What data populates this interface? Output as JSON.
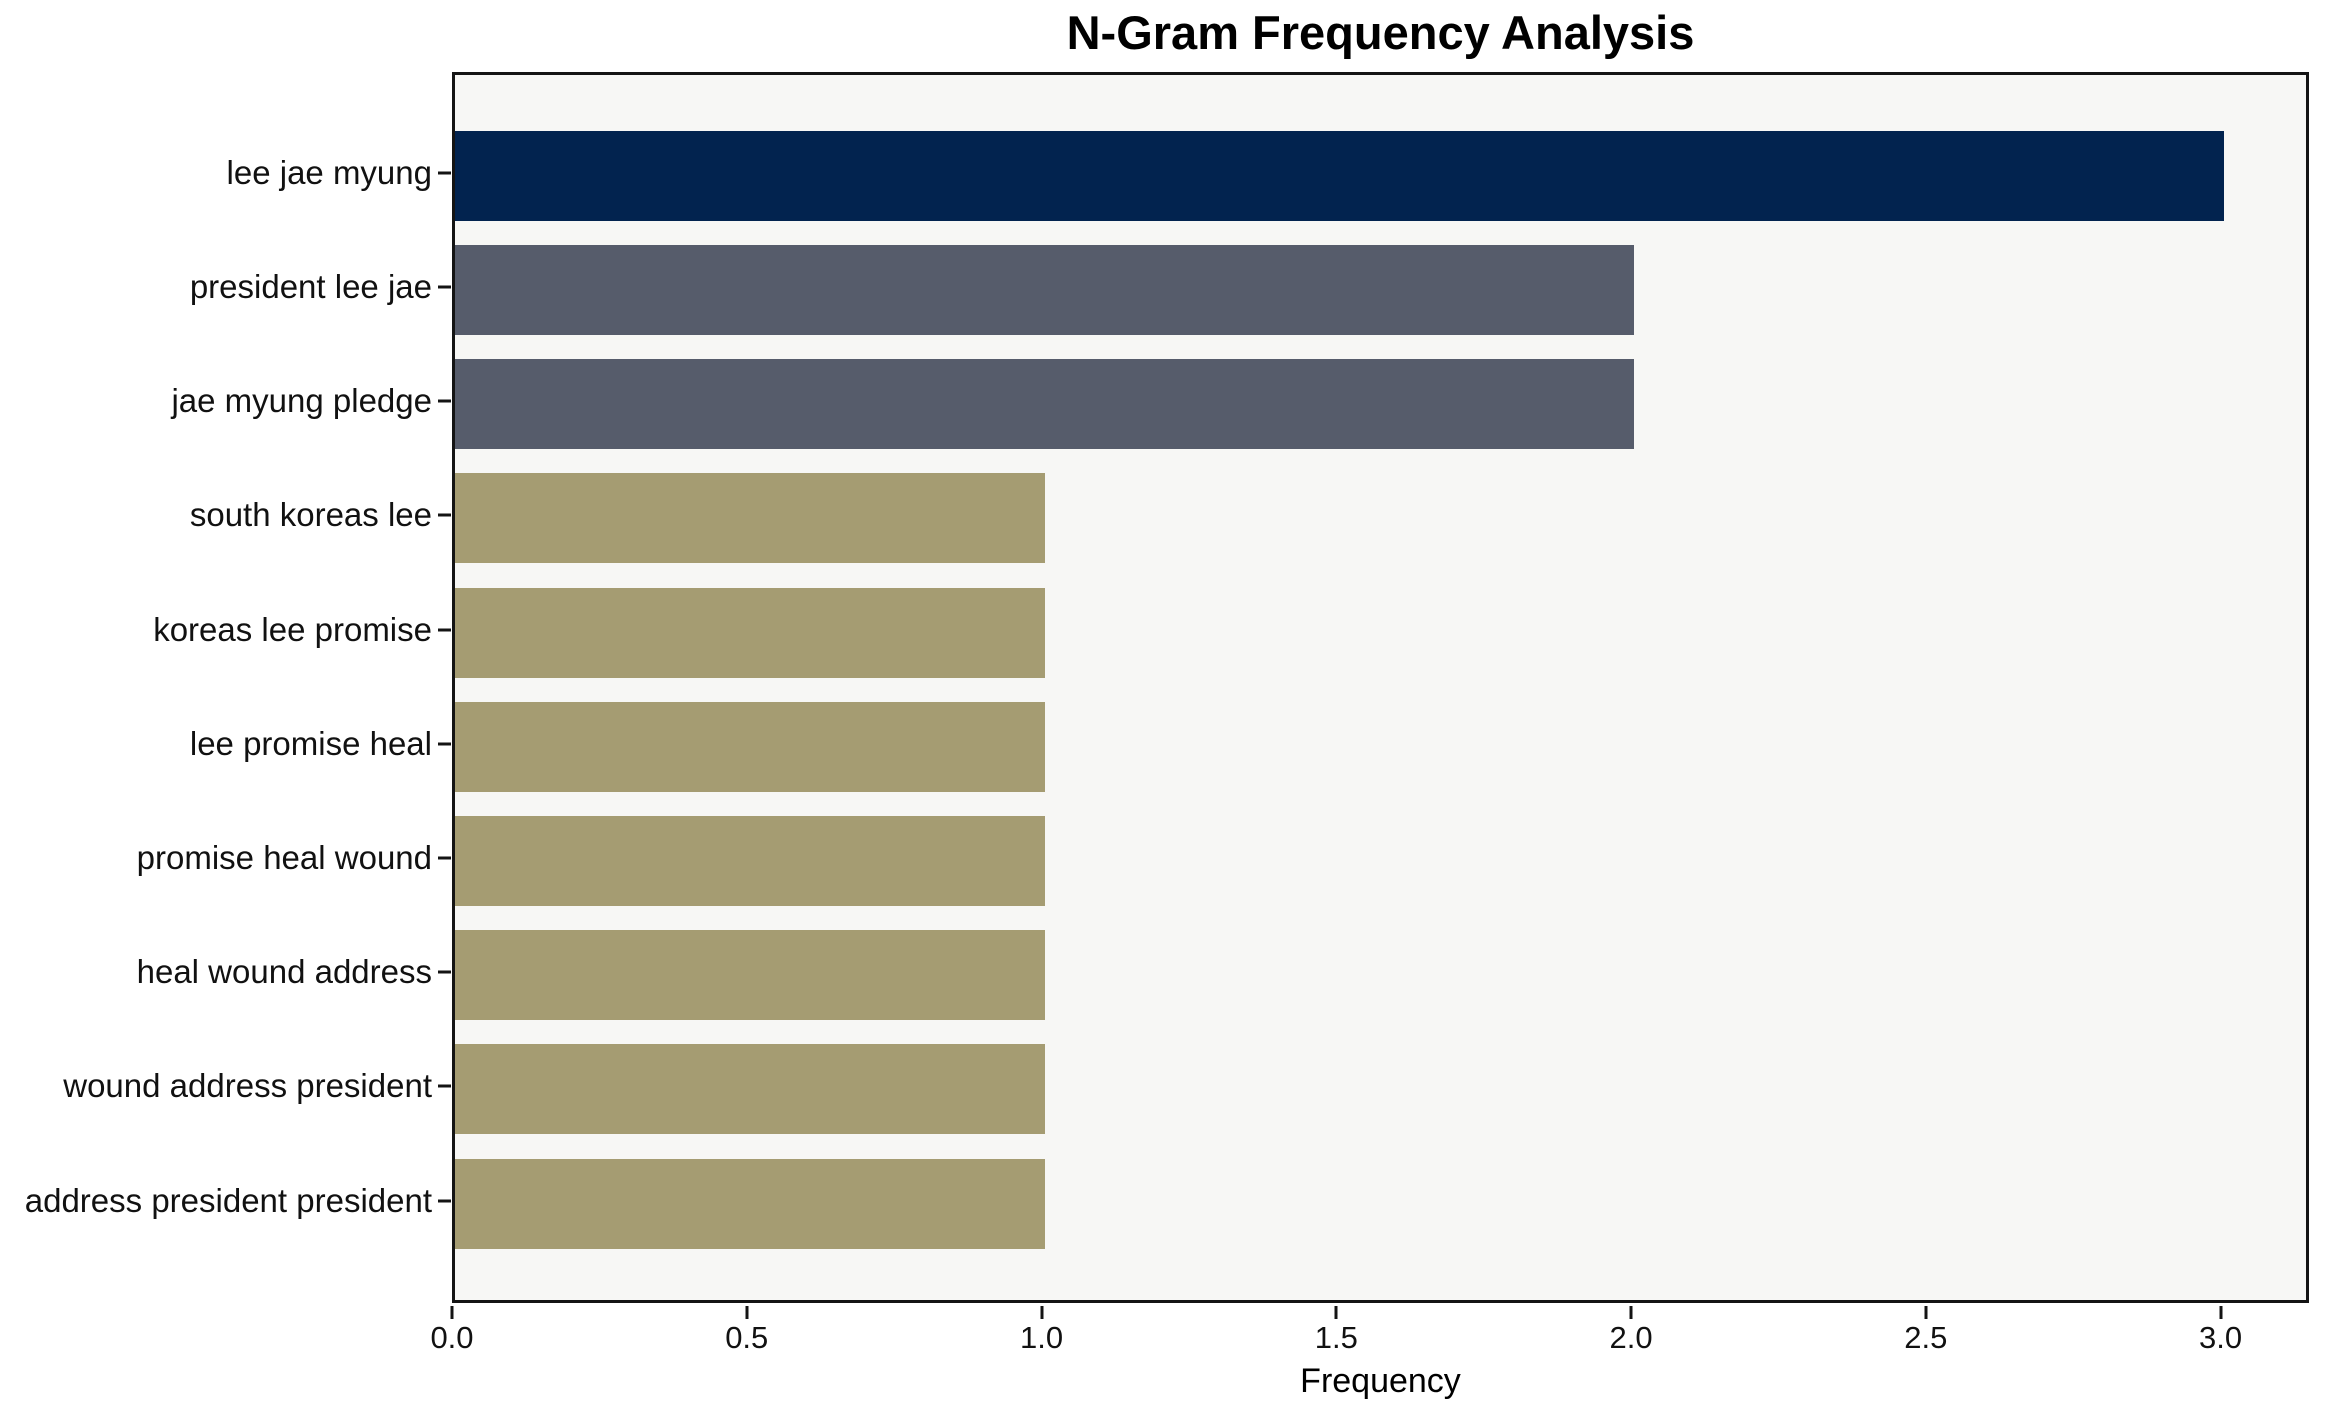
{
  "chart_data": {
    "type": "bar",
    "orientation": "horizontal",
    "title": "N-Gram Frequency Analysis",
    "xlabel": "Frequency",
    "ylabel": "",
    "categories": [
      "lee jae myung",
      "president lee jae",
      "jae myung pledge",
      "south koreas lee",
      "koreas lee promise",
      "lee promise heal",
      "promise heal wound",
      "heal wound address",
      "wound address president",
      "address president president"
    ],
    "values": [
      3,
      2,
      2,
      1,
      1,
      1,
      1,
      1,
      1,
      1
    ],
    "bar_colors": [
      "#02234F",
      "#565C6B",
      "#565C6B",
      "#A59C72",
      "#A59C72",
      "#A59C72",
      "#A59C72",
      "#A59C72",
      "#A59C72",
      "#A59C72"
    ],
    "x_tick_labels": [
      "0.0",
      "0.5",
      "1.0",
      "1.5",
      "2.0",
      "2.5",
      "3.0"
    ],
    "x_tick_values": [
      0.0,
      0.5,
      1.0,
      1.5,
      2.0,
      2.5,
      3.0
    ],
    "xlim": [
      0,
      3.15
    ],
    "grid": false,
    "legend_position": "none",
    "colors": {
      "plot_background": "#F7F7F5",
      "figure_background": "#FFFFFF",
      "axis_line": "#141414",
      "text": "#111111"
    }
  }
}
